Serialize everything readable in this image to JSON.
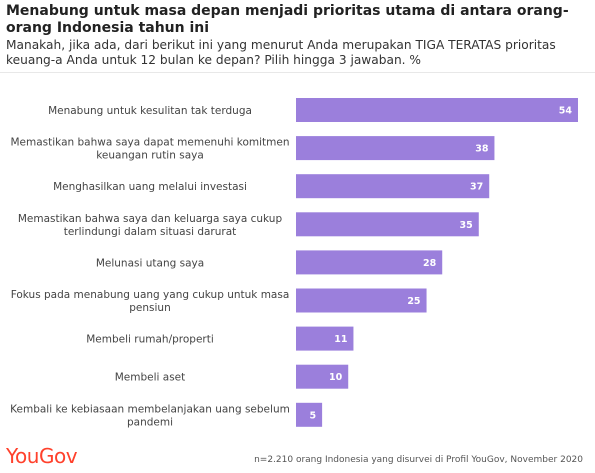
{
  "header": {
    "title": "Menabung untuk masa depan menjadi prioritas utama di antara orang-orang Indonesia tahun ini",
    "subtitle": "Manakah, jika ada, dari berikut ini yang menurut Anda merupakan TIGA TERATAS prioritas keuang-a Anda untuk 12 bulan ke depan? Pilih hingga 3 jawaban. %"
  },
  "footer": {
    "logo": "YouGov",
    "note": "n=2.210 orang Indonesia yang disurvei di Profil YouGov, November 2020"
  },
  "colors": {
    "bar": "#9b7fdc",
    "logo": "#ff412c"
  },
  "chart_data": {
    "type": "bar",
    "orientation": "horizontal",
    "categories": [
      "Menabung untuk kesulitan tak terduga",
      "Memastikan bahwa saya dapat memenuhi komitmen keuangan rutin saya",
      "Menghasilkan uang melalui investasi",
      "Memastikan bahwa saya dan keluarga saya cukup terlindungi dalam situasi darurat",
      "Melunasi utang saya",
      "Fokus pada menabung uang yang cukup untuk masa pensiun",
      "Membeli rumah/properti",
      "Membeli aset",
      "Kembali ke kebiasaan membelanjakan uang sebelum pandemi"
    ],
    "category_lines": [
      [
        "Menabung untuk kesulitan tak terduga"
      ],
      [
        "Memastikan bahwa saya dapat memenuhi komitmen",
        "keuangan rutin saya"
      ],
      [
        "Menghasilkan uang melalui investasi"
      ],
      [
        "Memastikan bahwa saya dan keluarga saya cukup",
        "terlindungi dalam situasi darurat"
      ],
      [
        "Melunasi utang saya"
      ],
      [
        "Fokus pada menabung uang yang cukup untuk masa",
        "pensiun"
      ],
      [
        "Membeli rumah/properti"
      ],
      [
        "Membeli aset"
      ],
      [
        "Kembali ke kebiasaan membelanjakan uang sebelum",
        "pandemi"
      ]
    ],
    "values": [
      54,
      38,
      37,
      35,
      28,
      25,
      11,
      10,
      5
    ],
    "xlim": [
      0,
      54
    ],
    "grid": false,
    "legend": "none"
  }
}
